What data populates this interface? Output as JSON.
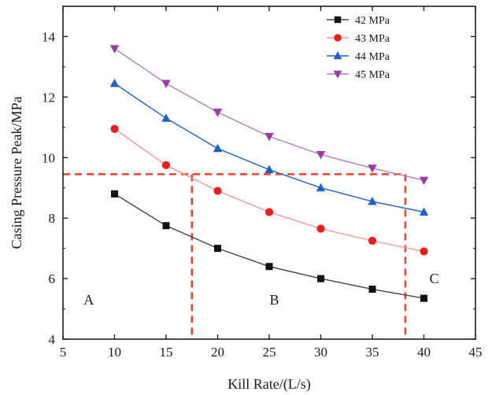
{
  "chart_data": {
    "type": "line",
    "title": "",
    "xlabel": "Kill Rate/(L/s)",
    "ylabel": "Casing Pressure Peak/MPa",
    "xlim": [
      5,
      45
    ],
    "ylim": [
      4,
      15
    ],
    "x_ticks": [
      "5",
      "10",
      "15",
      "20",
      "25",
      "30",
      "35",
      "40",
      "45"
    ],
    "y_ticks": [
      "4",
      "6",
      "8",
      "10",
      "12",
      "14"
    ],
    "grid": false,
    "legend_position": "top-right",
    "x": [
      10,
      15,
      20,
      25,
      30,
      35,
      40
    ],
    "series": [
      {
        "name": "42 MPa",
        "color": "#111111",
        "line_color": "#444444",
        "marker": "square",
        "values": [
          8.8,
          7.75,
          7.0,
          6.4,
          6.0,
          5.65,
          5.35
        ]
      },
      {
        "name": "43 MPa",
        "color": "#ee1c1c",
        "line_color": "#f39a9a",
        "marker": "circle",
        "values": [
          10.95,
          9.75,
          8.9,
          8.2,
          7.65,
          7.25,
          6.9
        ]
      },
      {
        "name": "44 MPa",
        "color": "#1f5fc8",
        "line_color": "#1f5fc8",
        "marker": "triangle-up",
        "values": [
          12.45,
          11.3,
          10.3,
          9.6,
          9.0,
          8.55,
          8.2
        ]
      },
      {
        "name": "45 MPa",
        "color": "#9c3aa6",
        "line_color": "#b67bbf",
        "marker": "triangle-down",
        "values": [
          13.6,
          12.45,
          11.5,
          10.7,
          10.1,
          9.65,
          9.25
        ]
      }
    ],
    "reference_lines": {
      "color": "#e8432f",
      "y": 9.45,
      "x": [
        17.5,
        38.2
      ]
    },
    "annotations": [
      {
        "text": "A",
        "x": 7.5,
        "y": 5.3
      },
      {
        "text": "B",
        "x": 25.5,
        "y": 5.3
      },
      {
        "text": "C",
        "x": 41.0,
        "y": 6.0
      }
    ]
  }
}
